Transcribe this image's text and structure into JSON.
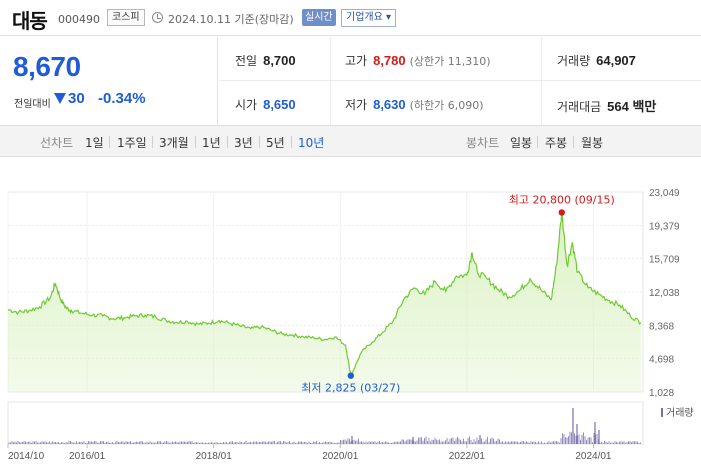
{
  "header": {
    "name": "대동",
    "code": "000490",
    "market": "코스피",
    "date": "2024.10.11  기준(장마감)",
    "live": "실시간",
    "company_btn": "기업개요 ▾"
  },
  "price": {
    "current": "8,670",
    "change_label": "전일대비",
    "change": "30",
    "change_pct": "-0.34%",
    "direction": "down"
  },
  "stats": {
    "prev_close": {
      "label": "전일",
      "value": "8,700"
    },
    "high": {
      "label": "고가",
      "value": "8,780",
      "sub": "(상한가 11,310)"
    },
    "volume": {
      "label": "거래량",
      "value": "64,907"
    },
    "open": {
      "label": "시가",
      "value": "8,650"
    },
    "low": {
      "label": "저가",
      "value": "8,630",
      "sub": "(하한가 6,090)"
    },
    "amount": {
      "label": "거래대금",
      "value": "564 백만"
    }
  },
  "toolbar": {
    "line_label": "선차트",
    "line_periods": [
      "1일",
      "1주일",
      "3개월",
      "1년",
      "3년",
      "5년",
      "10년"
    ],
    "active_period": "10년",
    "candle_label": "봉차트",
    "candle_periods": [
      "일봉",
      "주봉",
      "월봉"
    ]
  },
  "chart_data": {
    "type": "area",
    "y_ticks": [
      "23,049",
      "19,379",
      "15,709",
      "12,038",
      "8,368",
      "4,698",
      "1,028"
    ],
    "ylim": [
      1028,
      23049
    ],
    "x_ticks": [
      "2014/10",
      "2016/01",
      "2018/01",
      "2020/01",
      "2022/01",
      "2024/01"
    ],
    "series": [
      {
        "x": [
          "2014/10",
          "2014/12",
          "2015/02",
          "2015/04",
          "2015/06",
          "2015/07",
          "2015/08",
          "2015/09",
          "2015/10",
          "2015/12",
          "2016/02",
          "2016/04",
          "2016/06",
          "2016/08",
          "2016/10",
          "2016/12",
          "2017/02",
          "2017/04",
          "2017/06",
          "2017/08",
          "2017/10",
          "2017/12",
          "2018/02",
          "2018/04",
          "2018/06",
          "2018/08",
          "2018/10",
          "2018/12",
          "2019/02",
          "2019/04",
          "2019/06",
          "2019/08",
          "2019/10",
          "2019/12",
          "2020/02",
          "2020/03",
          "2020/05",
          "2020/07",
          "2020/09",
          "2020/11",
          "2021/01",
          "2021/03",
          "2021/05",
          "2021/07",
          "2021/09",
          "2021/11",
          "2022/01",
          "2022/02",
          "2022/03",
          "2022/05",
          "2022/07",
          "2022/09",
          "2022/11",
          "2023/01",
          "2023/03",
          "2023/05",
          "2023/06",
          "2023/07",
          "2023/08",
          "2023/09",
          "2023/10",
          "2023/12",
          "2024/02",
          "2024/04",
          "2024/06",
          "2024/08",
          "2024/10"
        ],
        "values": [
          10100,
          9800,
          10000,
          10400,
          11400,
          13000,
          11200,
          10300,
          10000,
          9700,
          9500,
          9400,
          9100,
          9200,
          9400,
          9500,
          9300,
          8900,
          8700,
          8800,
          8500,
          8600,
          8900,
          8600,
          8300,
          8000,
          8200,
          7800,
          7400,
          7300,
          7100,
          7000,
          6800,
          7100,
          6200,
          2825,
          5400,
          6500,
          7600,
          8800,
          11200,
          12500,
          11800,
          13200,
          12100,
          13800,
          13900,
          16400,
          14200,
          13400,
          12300,
          11500,
          12200,
          13500,
          12300,
          11200,
          15000,
          20800,
          15000,
          17500,
          14200,
          12500,
          11800,
          11100,
          10600,
          9400,
          8670
        ]
      }
    ],
    "max_label": "최고 20,800 (09/15)",
    "min_label": "최저 2,825 (03/27)",
    "volume_label": "거래량"
  },
  "colors": {
    "line": "#6ecb2e",
    "fill": "#dcf2c5",
    "up": "#d41a1a",
    "down": "#1f5cd6",
    "volume": "#7c6fb0"
  }
}
